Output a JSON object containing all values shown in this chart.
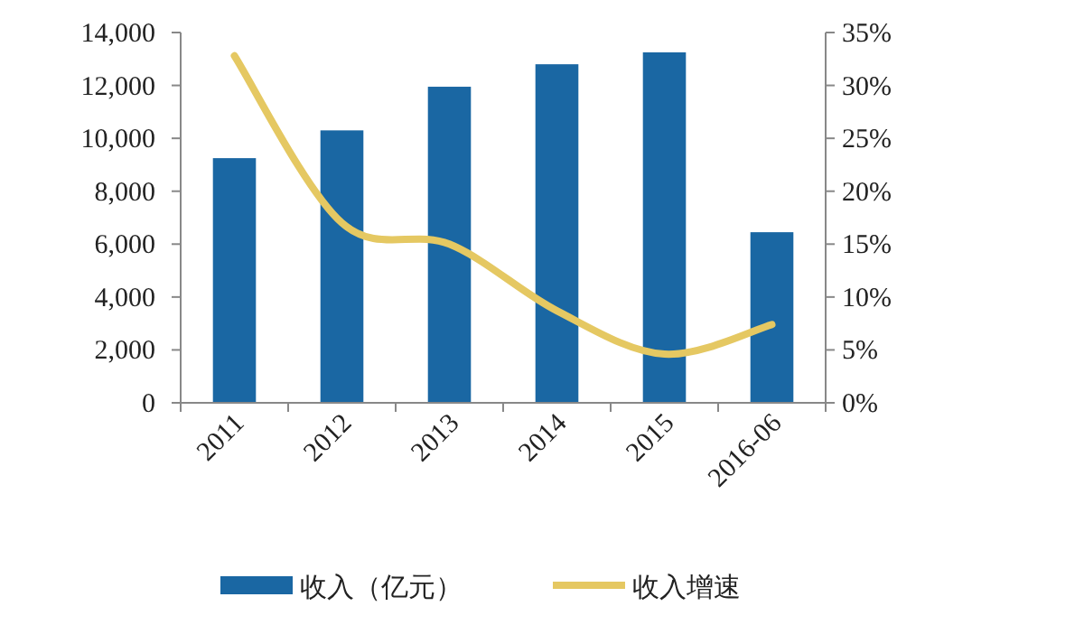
{
  "chart_data": {
    "type": "bar",
    "categories": [
      "2011",
      "2012",
      "2013",
      "2014",
      "2015",
      "2016-06"
    ],
    "series": [
      {
        "name": "收入（亿元）",
        "color": "#1a67a3",
        "values": [
          9250,
          10300,
          11950,
          12800,
          13250,
          6450
        ]
      },
      {
        "name": "收入增速",
        "type": "line",
        "axis": "y2",
        "color": "#e5c862",
        "values": [
          32.8,
          17.0,
          15.0,
          8.7,
          4.6,
          7.4
        ]
      }
    ],
    "ylim": [
      0,
      14000
    ],
    "yticks": [
      0,
      {
        "value": 2000,
        "label": "2,000"
      },
      {
        "value": 4000,
        "label": "4,000"
      },
      {
        "value": 6000,
        "label": "6,000"
      },
      {
        "value": 8000,
        "label": "8,000"
      },
      {
        "value": 10000,
        "label": "10,000"
      },
      {
        "value": 12000,
        "label": "12,000"
      },
      {
        "value": 14000,
        "label": "14,000"
      }
    ],
    "y2lim": [
      0,
      35
    ],
    "y2ticks": [
      {
        "value": 0,
        "label": "0%"
      },
      {
        "value": 5,
        "label": "5%"
      },
      {
        "value": 10,
        "label": "10%"
      },
      {
        "value": 15,
        "label": "15%"
      },
      {
        "value": 20,
        "label": "20%"
      },
      {
        "value": 25,
        "label": "25%"
      },
      {
        "value": 30,
        "label": "30%"
      },
      {
        "value": 35,
        "label": "35%"
      }
    ],
    "legend": "bottom",
    "grid": false
  }
}
